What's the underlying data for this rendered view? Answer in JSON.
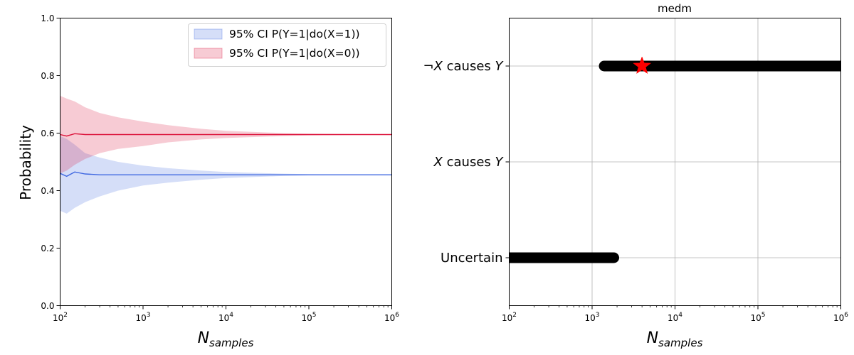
{
  "chart_data": [
    {
      "type": "area",
      "title": "",
      "ylabel": "Probability",
      "xlabel": {
        "base": "N",
        "sub": "samples"
      },
      "xscale": "log",
      "xlim": [
        100,
        1000000
      ],
      "ylim": [
        0,
        1
      ],
      "x_ticks": [
        {
          "base": "10",
          "exp": "2"
        },
        {
          "base": "10",
          "exp": "3"
        },
        {
          "base": "10",
          "exp": "4"
        },
        {
          "base": "10",
          "exp": "5"
        },
        {
          "base": "10",
          "exp": "6"
        }
      ],
      "y_ticks": [
        "0.0",
        "0.2",
        "0.4",
        "0.6",
        "0.8",
        "1.0"
      ],
      "grid": false,
      "legend": {
        "placement": "top-right",
        "entries": [
          {
            "label": "95% CI P(Y=1|do(X=1))",
            "color": "#4169e1"
          },
          {
            "label": "95% CI P(Y=1|do(X=0))",
            "color": "#dc143c"
          }
        ]
      },
      "series": [
        {
          "color": "#4169e1",
          "x": [
            100,
            120,
            150,
            200,
            300,
            500,
            1000,
            2000,
            5000,
            10000,
            50000,
            100000,
            1000000
          ],
          "mean": [
            0.46,
            0.45,
            0.465,
            0.458,
            0.455,
            0.455,
            0.455,
            0.455,
            0.455,
            0.455,
            0.455,
            0.455,
            0.455
          ],
          "lower": [
            0.33,
            0.32,
            0.34,
            0.36,
            0.38,
            0.4,
            0.418,
            0.428,
            0.438,
            0.444,
            0.451,
            0.453,
            0.455
          ],
          "upper": [
            0.59,
            0.58,
            0.56,
            0.53,
            0.515,
            0.5,
            0.487,
            0.478,
            0.47,
            0.465,
            0.459,
            0.457,
            0.455
          ]
        },
        {
          "color": "#dc143c",
          "x": [
            100,
            120,
            150,
            200,
            300,
            500,
            1000,
            2000,
            5000,
            10000,
            50000,
            100000,
            1000000
          ],
          "mean": [
            0.595,
            0.59,
            0.598,
            0.595,
            0.595,
            0.595,
            0.595,
            0.595,
            0.595,
            0.595,
            0.595,
            0.595,
            0.595
          ],
          "lower": [
            0.46,
            0.47,
            0.49,
            0.51,
            0.53,
            0.545,
            0.555,
            0.568,
            0.578,
            0.583,
            0.59,
            0.592,
            0.595
          ],
          "upper": [
            0.73,
            0.72,
            0.71,
            0.69,
            0.67,
            0.655,
            0.64,
            0.628,
            0.615,
            0.608,
            0.6,
            0.598,
            0.595
          ]
        }
      ]
    },
    {
      "type": "scatter",
      "title": "medm",
      "xlabel": {
        "base": "N",
        "sub": "samples"
      },
      "xscale": "log",
      "xlim": [
        100,
        1000000
      ],
      "x_ticks": [
        {
          "base": "10",
          "exp": "2"
        },
        {
          "base": "10",
          "exp": "3"
        },
        {
          "base": "10",
          "exp": "4"
        },
        {
          "base": "10",
          "exp": "5"
        },
        {
          "base": "10",
          "exp": "6"
        }
      ],
      "categories": [
        {
          "key": "Uncertain",
          "parts": [
            {
              "t": "Uncertain",
              "i": false
            }
          ]
        },
        {
          "key": "X causes Y",
          "parts": [
            {
              "t": "X",
              "i": true
            },
            {
              "t": " causes ",
              "i": false
            },
            {
              "t": "Y",
              "i": true
            }
          ]
        },
        {
          "key": "notX causes Y",
          "parts": [
            {
              "t": "¬",
              "i": false
            },
            {
              "t": "X",
              "i": true
            },
            {
              "t": " causes ",
              "i": false
            },
            {
              "t": "Y",
              "i": true
            }
          ]
        }
      ],
      "grid": true,
      "segments": [
        {
          "category": "Uncertain",
          "x_start": 100,
          "x_end": 1500,
          "color": "#000000"
        },
        {
          "category": "notX causes Y",
          "x_start": 1400,
          "x_end": 1000000,
          "color": "#000000"
        }
      ],
      "marker": {
        "category": "notX causes Y",
        "x": 4000,
        "shape": "star",
        "color": "#ff0000"
      }
    }
  ]
}
